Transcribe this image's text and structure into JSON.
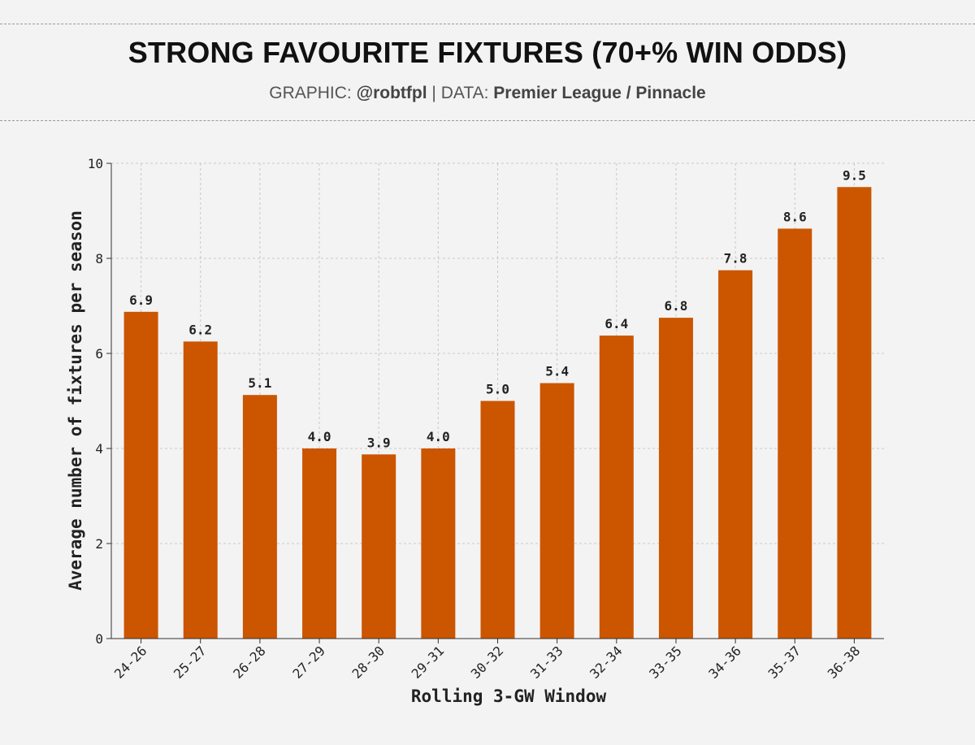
{
  "header": {
    "title": "STRONG FAVOURITE FIXTURES (70+% WIN ODDS)",
    "credit_label": "GRAPHIC:",
    "credit_handle": "@robtfpl",
    "separator": "|",
    "data_label": "DATA:",
    "data_source": "Premier League / Pinnacle"
  },
  "colors": {
    "bar": "#cc5500",
    "background": "#f3f3f3"
  },
  "chart_data": {
    "type": "bar",
    "title": "STRONG FAVOURITE FIXTURES (70+% WIN ODDS)",
    "xlabel": "Rolling 3-GW Window",
    "ylabel": "Average number of fixtures per season",
    "categories": [
      "24-26",
      "25-27",
      "26-28",
      "27-29",
      "28-30",
      "29-31",
      "30-32",
      "31-33",
      "32-34",
      "33-35",
      "34-36",
      "35-37",
      "36-38"
    ],
    "values": [
      6.875,
      6.25,
      5.125,
      4.0,
      3.875,
      4.0,
      5.0,
      5.375,
      6.375,
      6.75,
      7.75,
      8.625,
      9.5
    ],
    "value_labels": [
      "6.9",
      "6.2",
      "5.1",
      "4.0",
      "3.9",
      "4.0",
      "5.0",
      "5.4",
      "6.4",
      "6.8",
      "7.8",
      "8.6",
      "9.5"
    ],
    "ylim": [
      0,
      10
    ],
    "yticks": [
      "0",
      "2",
      "4",
      "6",
      "8",
      "10"
    ],
    "grid": true
  }
}
